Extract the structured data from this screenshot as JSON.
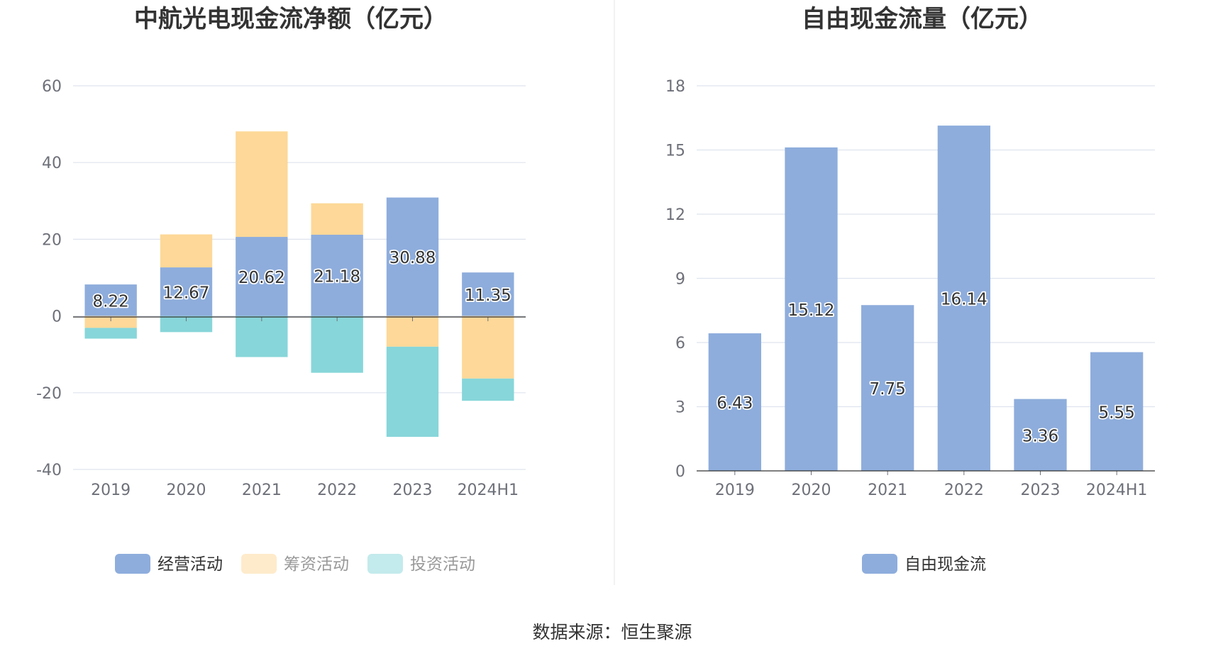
{
  "source_label": "数据来源：恒生聚源",
  "colors": {
    "operating": "#8eaddc",
    "financing": "#fdd898",
    "investing": "#87d6d9",
    "fcf": "#8eaddc",
    "grid": "#dfe3ee",
    "axis": "#6e7079",
    "legend_inactive_text": "#999999",
    "legend_active_text": "#333333"
  },
  "chart_data": [
    {
      "type": "bar",
      "stacked": true,
      "title": "中航光电现金流净额（亿元）",
      "categories": [
        "2019",
        "2020",
        "2021",
        "2022",
        "2023",
        "2024H1"
      ],
      "ylim": [
        -40,
        60
      ],
      "yticks": [
        -40,
        -20,
        0,
        20,
        40,
        60
      ],
      "grid": true,
      "legend_position": "bottom",
      "series": [
        {
          "name": "经营活动",
          "color_key": "operating",
          "values": [
            8.22,
            12.67,
            20.62,
            21.18,
            30.88,
            11.35
          ],
          "show_labels": true,
          "legend_active": true
        },
        {
          "name": "筹资活动",
          "color_key": "financing",
          "values": [
            -3.1,
            8.6,
            27.5,
            8.2,
            -8.0,
            -16.3
          ],
          "show_labels": false,
          "legend_active": false
        },
        {
          "name": "投资活动",
          "color_key": "investing",
          "values": [
            -2.8,
            -4.2,
            -10.7,
            -14.8,
            -23.5,
            -5.8
          ],
          "show_labels": false,
          "legend_active": false
        }
      ]
    },
    {
      "type": "bar",
      "stacked": false,
      "title": "自由现金流量（亿元）",
      "categories": [
        "2019",
        "2020",
        "2021",
        "2022",
        "2023",
        "2024H1"
      ],
      "ylim": [
        0,
        18
      ],
      "yticks": [
        0,
        3,
        6,
        9,
        12,
        15,
        18
      ],
      "grid": true,
      "legend_position": "bottom",
      "series": [
        {
          "name": "自由现金流",
          "color_key": "fcf",
          "values": [
            6.43,
            15.12,
            7.75,
            16.14,
            3.36,
            5.55
          ],
          "show_labels": true,
          "legend_active": true
        }
      ]
    }
  ]
}
